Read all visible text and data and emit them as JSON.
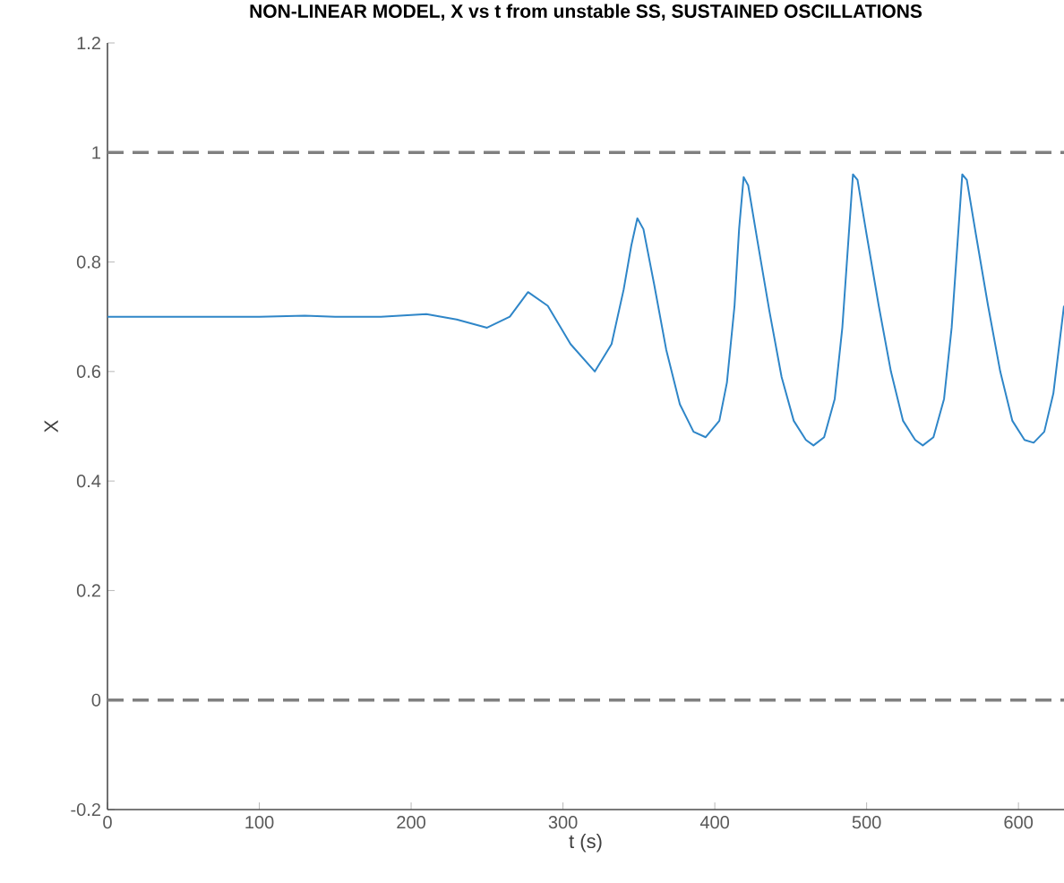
{
  "chart_data": {
    "type": "line",
    "title": "NON-LINEAR MODEL, X vs t from unstable SS, SUSTAINED OSCILLATIONS",
    "xlabel": "t (s)",
    "ylabel": "X",
    "xlim": [
      0,
      630
    ],
    "ylim": [
      -0.2,
      1.2
    ],
    "xticks": [
      0,
      100,
      200,
      300,
      400,
      500,
      600
    ],
    "yticks": [
      -0.2,
      0,
      0.2,
      0.4,
      0.6,
      0.8,
      1,
      1.2
    ],
    "grid": false,
    "marker": "none",
    "line_style": "solid",
    "ref_lines": [
      {
        "axis": "y",
        "value": 1,
        "color": "#808080",
        "line_style": "dashed"
      },
      {
        "axis": "y",
        "value": 0,
        "color": "#808080",
        "line_style": "dashed"
      }
    ],
    "series": [
      {
        "color": "#2f86c8",
        "x": [
          0,
          50,
          100,
          130,
          150,
          180,
          210,
          230,
          250,
          265,
          277,
          290,
          305,
          321,
          332,
          340,
          345,
          349,
          353,
          360,
          368,
          377,
          386,
          394,
          403,
          408,
          413,
          416,
          419,
          422,
          428,
          436,
          444,
          452,
          460,
          465,
          472,
          479,
          484,
          488,
          491,
          494,
          500,
          508,
          516,
          524,
          532,
          537,
          544,
          551,
          556,
          560,
          563,
          566,
          572,
          580,
          588,
          596,
          604,
          610,
          617,
          623,
          630
        ],
        "values": [
          0.7,
          0.7,
          0.7,
          0.702,
          0.7,
          0.7,
          0.705,
          0.695,
          0.68,
          0.7,
          0.745,
          0.72,
          0.65,
          0.6,
          0.65,
          0.75,
          0.83,
          0.88,
          0.86,
          0.76,
          0.64,
          0.54,
          0.49,
          0.48,
          0.51,
          0.58,
          0.72,
          0.86,
          0.955,
          0.94,
          0.84,
          0.71,
          0.59,
          0.51,
          0.475,
          0.465,
          0.48,
          0.55,
          0.68,
          0.84,
          0.96,
          0.95,
          0.85,
          0.72,
          0.6,
          0.51,
          0.475,
          0.465,
          0.48,
          0.55,
          0.68,
          0.84,
          0.96,
          0.95,
          0.85,
          0.72,
          0.6,
          0.51,
          0.475,
          0.47,
          0.49,
          0.56,
          0.72
        ]
      }
    ]
  }
}
